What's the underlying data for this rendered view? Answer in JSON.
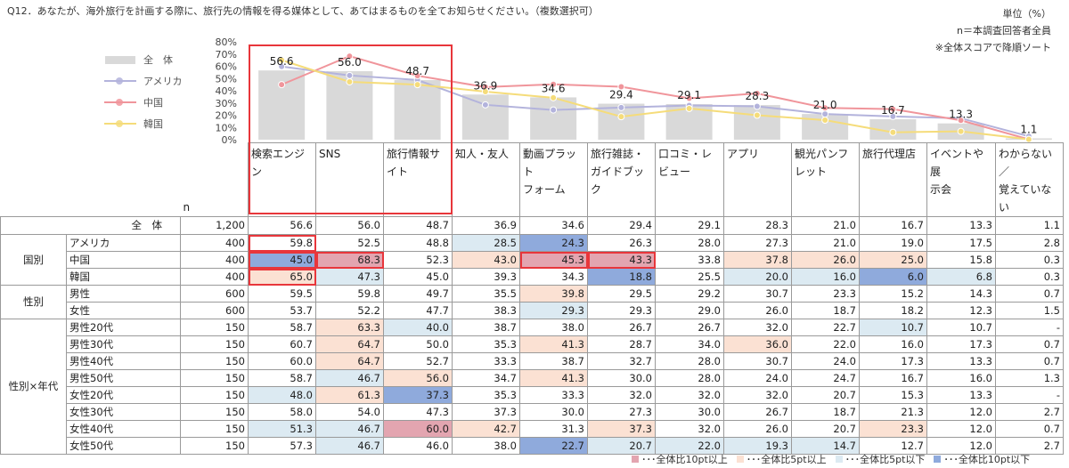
{
  "question": "Q12．あなたが、海外旅行を計画する際に、旅行先の情報を得る媒体として、あてはまるものを全てお知らせください。（複数選択可）",
  "notes": [
    "単位（%）",
    "n＝本調査回答者全員",
    "※全体スコアで降順ソート"
  ],
  "colors": {
    "bar": "#d9d9d9",
    "america": "#b3b3dc",
    "china": "#f0959b",
    "korea": "#f5dc7a",
    "cell_plus10": "#e3a5b0",
    "cell_plus5": "#fbe1d3",
    "cell_minus5": "#dceaf2",
    "cell_minus10": "#8faadc"
  },
  "chart_data": {
    "type": "bar",
    "categories": [
      "検索エンジン",
      "SNS",
      "旅行情報サイト",
      "知人・友人",
      "動画プラットフォーム",
      "旅行雑誌・ガイドブック",
      "口コミ・レビュー",
      "アプリ",
      "観光パンフレット",
      "旅行代理店",
      "イベントや展示会",
      "わからない／覚えていない"
    ],
    "category_labels": [
      "検索エンジン",
      "SNS",
      "旅行情報サイト",
      "知人・友人",
      "動画プラット\nフォーム",
      "旅行雑誌・\nガイドブック",
      "口コミ・レ\nビュー",
      "アプリ",
      "観光パンフ\nレット",
      "旅行代理店",
      "イベントや展\n示会",
      "わからない／\n覚えていない"
    ],
    "ylim": [
      0,
      80
    ],
    "yticks": [
      "0%",
      "10%",
      "20%",
      "30%",
      "40%",
      "50%",
      "60%",
      "70%",
      "80%"
    ],
    "series": [
      {
        "name": "全　体",
        "type": "bar",
        "values": [
          56.6,
          56.0,
          48.7,
          36.9,
          34.6,
          29.4,
          29.1,
          28.3,
          21.0,
          16.7,
          13.3,
          1.1
        ]
      },
      {
        "name": "アメリカ",
        "type": "line",
        "values": [
          59.8,
          52.5,
          48.8,
          28.5,
          24.3,
          26.3,
          28.0,
          27.3,
          21.0,
          19.0,
          17.5,
          2.8
        ]
      },
      {
        "name": "中国",
        "type": "line",
        "values": [
          45.0,
          68.3,
          52.3,
          43.0,
          45.3,
          43.3,
          33.8,
          37.8,
          26.0,
          25.0,
          15.8,
          0.3
        ]
      },
      {
        "name": "韓国",
        "type": "line",
        "values": [
          65.0,
          47.3,
          45.0,
          39.3,
          34.3,
          18.8,
          25.5,
          20.0,
          16.0,
          6.0,
          6.8,
          0.3
        ]
      }
    ],
    "data_labels": [
      "56.6",
      "56.0",
      "48.7",
      "36.9",
      "34.6",
      "29.4",
      "29.1",
      "28.3",
      "21.0",
      "16.7",
      "13.3",
      "1.1"
    ],
    "legend_position": "left"
  },
  "table": {
    "n_header": "n",
    "rows": [
      {
        "group": "",
        "label": "全　体",
        "n": "1,200",
        "vals": [
          "56.6",
          "56.0",
          "48.7",
          "36.9",
          "34.6",
          "29.4",
          "29.1",
          "28.3",
          "21.0",
          "16.7",
          "13.3",
          "1.1"
        ],
        "shade": [
          0,
          0,
          0,
          0,
          0,
          0,
          0,
          0,
          0,
          0,
          0,
          0
        ]
      },
      {
        "group": "国別",
        "label": "アメリカ",
        "n": "400",
        "vals": [
          "59.8",
          "52.5",
          "48.8",
          "28.5",
          "24.3",
          "26.3",
          "28.0",
          "27.3",
          "21.0",
          "19.0",
          "17.5",
          "2.8"
        ],
        "shade": [
          0,
          0,
          0,
          -1,
          -2,
          0,
          0,
          0,
          0,
          0,
          0,
          0
        ]
      },
      {
        "group": "",
        "label": "中国",
        "n": "400",
        "vals": [
          "45.0",
          "68.3",
          "52.3",
          "43.0",
          "45.3",
          "43.3",
          "33.8",
          "37.8",
          "26.0",
          "25.0",
          "15.8",
          "0.3"
        ],
        "shade": [
          -2,
          2,
          0,
          1,
          2,
          2,
          0,
          1,
          1,
          1,
          0,
          0
        ]
      },
      {
        "group": "",
        "label": "韓国",
        "n": "400",
        "vals": [
          "65.0",
          "47.3",
          "45.0",
          "39.3",
          "34.3",
          "18.8",
          "25.5",
          "20.0",
          "16.0",
          "6.0",
          "6.8",
          "0.3"
        ],
        "shade": [
          1,
          -1,
          0,
          0,
          0,
          -2,
          0,
          -1,
          -1,
          -2,
          -1,
          0
        ]
      },
      {
        "group": "性別",
        "label": "男性",
        "n": "600",
        "vals": [
          "59.5",
          "59.8",
          "49.7",
          "35.5",
          "39.8",
          "29.5",
          "29.2",
          "30.7",
          "23.3",
          "15.2",
          "14.3",
          "0.7"
        ],
        "shade": [
          0,
          0,
          0,
          0,
          1,
          0,
          0,
          0,
          0,
          0,
          0,
          0
        ]
      },
      {
        "group": "",
        "label": "女性",
        "n": "600",
        "vals": [
          "53.7",
          "52.2",
          "47.7",
          "38.3",
          "29.3",
          "29.3",
          "29.0",
          "26.0",
          "18.7",
          "18.2",
          "12.3",
          "1.5"
        ],
        "shade": [
          0,
          0,
          0,
          0,
          -1,
          0,
          0,
          0,
          0,
          0,
          0,
          0
        ]
      },
      {
        "group": "性別×年代",
        "label": "男性20代",
        "n": "150",
        "vals": [
          "58.7",
          "63.3",
          "40.0",
          "38.7",
          "38.0",
          "26.7",
          "26.7",
          "32.0",
          "22.7",
          "10.7",
          "10.7",
          "-"
        ],
        "shade": [
          0,
          1,
          -1,
          0,
          0,
          0,
          0,
          0,
          0,
          -1,
          0,
          0
        ]
      },
      {
        "group": "",
        "label": "男性30代",
        "n": "150",
        "vals": [
          "60.7",
          "64.7",
          "50.0",
          "35.3",
          "41.3",
          "28.7",
          "34.0",
          "36.0",
          "22.0",
          "16.0",
          "17.3",
          "0.7"
        ],
        "shade": [
          0,
          1,
          0,
          0,
          1,
          0,
          0,
          1,
          0,
          0,
          0,
          0
        ]
      },
      {
        "group": "",
        "label": "男性40代",
        "n": "150",
        "vals": [
          "60.0",
          "64.7",
          "52.7",
          "33.3",
          "38.7",
          "32.7",
          "28.0",
          "30.7",
          "24.0",
          "17.3",
          "13.3",
          "0.7"
        ],
        "shade": [
          0,
          1,
          0,
          0,
          0,
          0,
          0,
          0,
          0,
          0,
          0,
          0
        ]
      },
      {
        "group": "",
        "label": "男性50代",
        "n": "150",
        "vals": [
          "58.7",
          "46.7",
          "56.0",
          "34.7",
          "41.3",
          "30.0",
          "28.0",
          "24.0",
          "24.7",
          "16.7",
          "16.0",
          "1.3"
        ],
        "shade": [
          0,
          -1,
          1,
          0,
          1,
          0,
          0,
          0,
          0,
          0,
          0,
          0
        ]
      },
      {
        "group": "",
        "label": "女性20代",
        "n": "150",
        "vals": [
          "48.0",
          "61.3",
          "37.3",
          "35.3",
          "33.3",
          "32.0",
          "32.0",
          "32.0",
          "20.7",
          "15.3",
          "13.3",
          "-"
        ],
        "shade": [
          -1,
          1,
          -2,
          0,
          0,
          0,
          0,
          0,
          0,
          0,
          0,
          0
        ]
      },
      {
        "group": "",
        "label": "女性30代",
        "n": "150",
        "vals": [
          "58.0",
          "54.0",
          "47.3",
          "37.3",
          "30.0",
          "27.3",
          "30.0",
          "26.7",
          "18.7",
          "21.3",
          "12.0",
          "2.7"
        ],
        "shade": [
          0,
          0,
          0,
          0,
          0,
          0,
          0,
          0,
          0,
          0,
          0,
          0
        ]
      },
      {
        "group": "",
        "label": "女性40代",
        "n": "150",
        "vals": [
          "51.3",
          "46.7",
          "60.0",
          "42.7",
          "31.3",
          "37.3",
          "32.0",
          "26.0",
          "20.7",
          "23.3",
          "12.0",
          "0.7"
        ],
        "shade": [
          -1,
          -1,
          2,
          1,
          0,
          1,
          0,
          0,
          0,
          1,
          0,
          0
        ]
      },
      {
        "group": "",
        "label": "女性50代",
        "n": "150",
        "vals": [
          "57.3",
          "46.7",
          "46.0",
          "38.0",
          "22.7",
          "20.7",
          "22.0",
          "19.3",
          "14.7",
          "12.7",
          "12.0",
          "2.7"
        ],
        "shade": [
          0,
          -1,
          0,
          0,
          -2,
          -1,
          -1,
          -1,
          -1,
          0,
          0,
          0
        ]
      }
    ],
    "red_outlines": [
      [
        1,
        0
      ],
      [
        2,
        0
      ],
      [
        3,
        0
      ],
      [
        2,
        1
      ],
      [
        2,
        4
      ],
      [
        2,
        5
      ]
    ]
  },
  "bottom_legend": [
    "･･･全体比10pt以上",
    "･･･全体比5pt以上",
    "･･･全体比5pt以下",
    "･･･全体比10pt以下"
  ]
}
